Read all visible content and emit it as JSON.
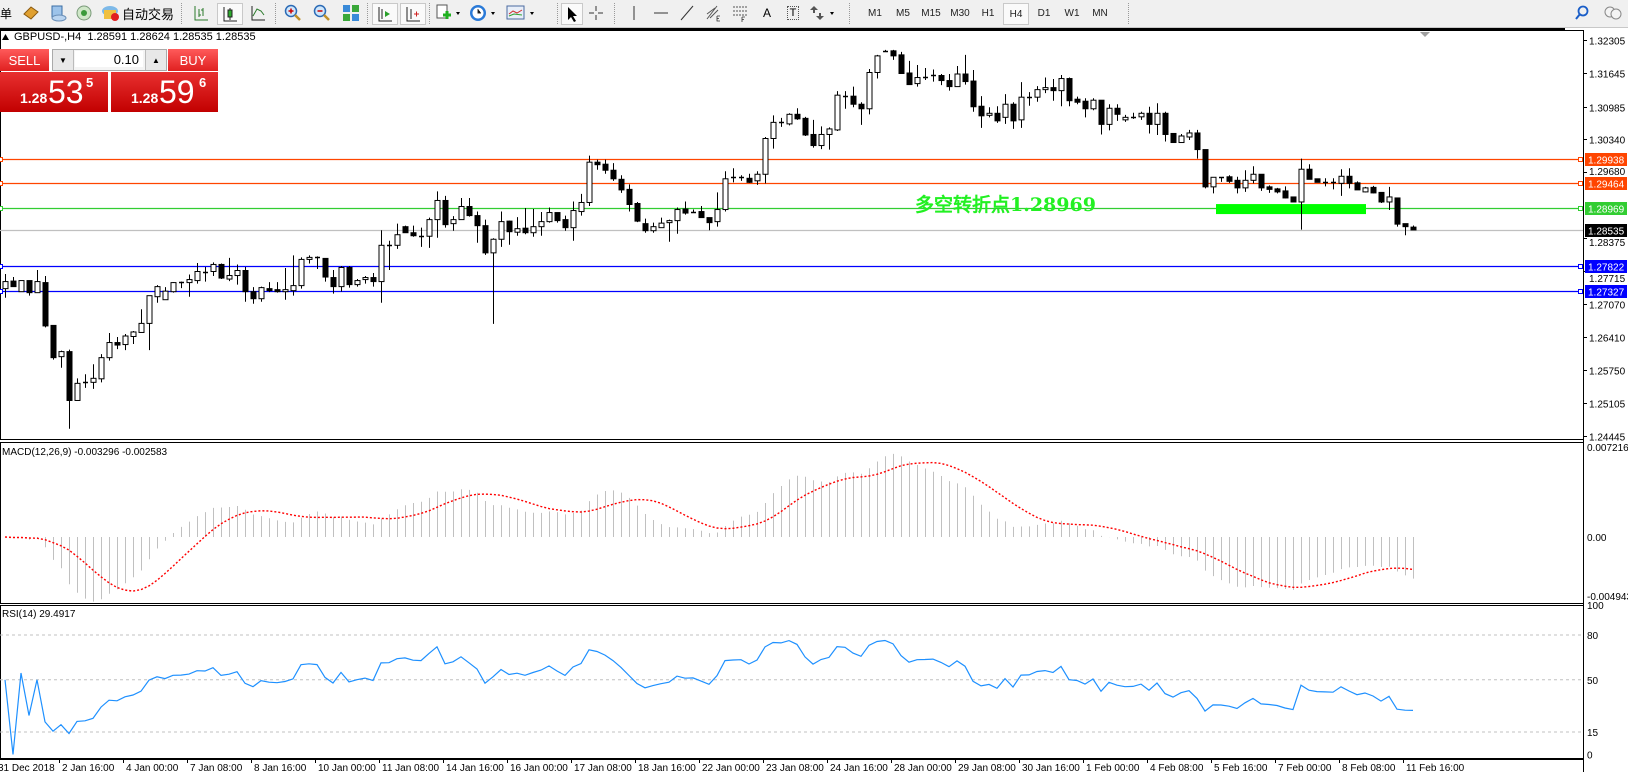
{
  "toolbar": {
    "menu_fragment": "单",
    "auto_trading_label": "自动交易",
    "icons": [
      "book-icon",
      "navigator-icon",
      "signals-icon",
      "auto-trading-icon",
      "bar-chart-icon",
      "candlestick-icon",
      "line-chart-icon",
      "zoom-in-icon",
      "zoom-out-icon",
      "tile-windows-icon",
      "auto-scroll-icon",
      "chart-shift-icon",
      "new-chart-icon",
      "periods-icon",
      "templates-icon",
      "cursor-icon",
      "crosshair-icon",
      "vertical-line-icon",
      "horizontal-line-icon",
      "trendline-icon",
      "fibonacci-icon",
      "equidistant-channel-icon",
      "text-icon",
      "text-label-icon",
      "arrows-icon",
      "search-icon",
      "community-icon"
    ],
    "text_tool": "A",
    "label_tool": "T",
    "timeframes": [
      "M1",
      "M5",
      "M15",
      "M30",
      "H1",
      "H4",
      "D1",
      "W1",
      "MN"
    ],
    "active_timeframe": "H4"
  },
  "chart": {
    "header": "GBPUSD-,H4  1.28591 1.28624 1.28535 1.28535",
    "annotation": "多空转折点1.28969",
    "annotation_color": "#22f022",
    "pivot_bar_color": "#00ff00"
  },
  "trade_panel": {
    "sell_label": "SELL",
    "buy_label": "BUY",
    "lot": "0.10",
    "sell": {
      "prefix": "1.28",
      "big": "53",
      "sup": "5"
    },
    "buy": {
      "prefix": "1.28",
      "big": "59",
      "sup": "6"
    }
  },
  "chart_data": {
    "type": "candlestick",
    "symbol": "GBPUSD-",
    "timeframe": "H4",
    "price_axis": {
      "max": 1.32305,
      "min": 1.24445,
      "ticks": [
        "1.32305",
        "1.31645",
        "1.30985",
        "1.30340",
        "1.29680",
        "1.28375",
        "1.27715",
        "1.27070",
        "1.26410",
        "1.25750",
        "1.25105",
        "1.24445"
      ]
    },
    "levels": [
      {
        "price": 1.29938,
        "label": "1.29938",
        "color": "#ff4500"
      },
      {
        "price": 1.29464,
        "label": "1.29464",
        "color": "#ff4500"
      },
      {
        "price": 1.28969,
        "label": "1.28969",
        "color": "#32cd32"
      },
      {
        "price": 1.28535,
        "label": "1.28535",
        "color": "#000000",
        "line_color": "#c0c0c0"
      },
      {
        "price": 1.27822,
        "label": "1.27822",
        "color": "#0000ff"
      },
      {
        "price": 1.27327,
        "label": "1.27327",
        "color": "#0000ff"
      }
    ],
    "time_labels": [
      "31 Dec 2018",
      "2 Jan 16:00",
      "4 Jan 00:00",
      "7 Jan 08:00",
      "8 Jan 16:00",
      "10 Jan 00:00",
      "11 Jan 08:00",
      "14 Jan 16:00",
      "16 Jan 00:00",
      "17 Jan 08:00",
      "18 Jan 16:00",
      "22 Jan 00:00",
      "23 Jan 08:00",
      "24 Jan 16:00",
      "28 Jan 00:00",
      "29 Jan 08:00",
      "30 Jan 16:00",
      "1 Feb 00:00",
      "4 Feb 08:00",
      "5 Feb 16:00",
      "7 Feb 00:00",
      "8 Feb 08:00",
      "11 Feb 16:00"
    ],
    "candles_format": [
      "open",
      "high",
      "low",
      "close"
    ],
    "candles": [
      [
        1.2737,
        1.2766,
        1.2719,
        1.2751
      ],
      [
        1.2752,
        1.276,
        1.2741,
        1.2741
      ],
      [
        1.2731,
        1.2753,
        1.2731,
        1.2753
      ],
      [
        1.2753,
        1.2753,
        1.2723,
        1.2729
      ],
      [
        1.2729,
        1.2774,
        1.2729,
        1.2751
      ],
      [
        1.2749,
        1.2762,
        1.266,
        1.2663
      ],
      [
        1.2664,
        1.2664,
        1.2596,
        1.26
      ],
      [
        1.2602,
        1.2614,
        1.258,
        1.2612
      ],
      [
        1.2612,
        1.2616,
        1.2459,
        1.2515
      ],
      [
        1.2515,
        1.2559,
        1.2515,
        1.2549
      ],
      [
        1.2549,
        1.2567,
        1.254,
        1.2551
      ],
      [
        1.2551,
        1.2587,
        1.2538,
        1.2559
      ],
      [
        1.2558,
        1.2607,
        1.2551,
        1.26
      ],
      [
        1.26,
        1.2649,
        1.2594,
        1.263
      ],
      [
        1.263,
        1.2641,
        1.2617,
        1.2625
      ],
      [
        1.2626,
        1.2647,
        1.2615,
        1.2643
      ],
      [
        1.2642,
        1.2653,
        1.2627,
        1.2651
      ],
      [
        1.265,
        1.2696,
        1.265,
        1.2668
      ],
      [
        1.2668,
        1.2723,
        1.2615,
        1.2723
      ],
      [
        1.2721,
        1.2744,
        1.2709,
        1.2741
      ],
      [
        1.2715,
        1.274,
        1.2715,
        1.2732
      ],
      [
        1.2731,
        1.275,
        1.2729,
        1.2749
      ],
      [
        1.2749,
        1.2751,
        1.2738,
        1.275
      ],
      [
        1.2749,
        1.2765,
        1.2721,
        1.2755
      ],
      [
        1.2753,
        1.2788,
        1.2747,
        1.2771
      ],
      [
        1.2771,
        1.278,
        1.2751,
        1.277
      ],
      [
        1.2771,
        1.2789,
        1.2762,
        1.2785
      ],
      [
        1.2785,
        1.2787,
        1.2756,
        1.2758
      ],
      [
        1.2756,
        1.2798,
        1.2752,
        1.2763
      ],
      [
        1.2763,
        1.2785,
        1.2745,
        1.2773
      ],
      [
        1.2773,
        1.278,
        1.2711,
        1.2731
      ],
      [
        1.2731,
        1.274,
        1.2707,
        1.2717
      ],
      [
        1.2717,
        1.2741,
        1.2711,
        1.2739
      ],
      [
        1.2737,
        1.275,
        1.273,
        1.2733
      ],
      [
        1.2735,
        1.275,
        1.2729,
        1.2731
      ],
      [
        1.2731,
        1.2778,
        1.2715,
        1.2735
      ],
      [
        1.2733,
        1.2803,
        1.2723,
        1.2743
      ],
      [
        1.2743,
        1.2799,
        1.2737,
        1.2795
      ],
      [
        1.2795,
        1.2803,
        1.2787,
        1.2799
      ],
      [
        1.2799,
        1.2801,
        1.2776,
        1.2797
      ],
      [
        1.2797,
        1.2797,
        1.2751,
        1.276
      ],
      [
        1.2759,
        1.2774,
        1.2727,
        1.2741
      ],
      [
        1.2741,
        1.2782,
        1.2731,
        1.2779
      ],
      [
        1.2779,
        1.2782,
        1.2739,
        1.2745
      ],
      [
        1.2745,
        1.2756,
        1.2741,
        1.2753
      ],
      [
        1.2755,
        1.2762,
        1.2747,
        1.2759
      ],
      [
        1.2759,
        1.2768,
        1.2741,
        1.2751
      ],
      [
        1.2751,
        1.2853,
        1.2709,
        1.2823
      ],
      [
        1.2823,
        1.2832,
        1.2774,
        1.2824
      ],
      [
        1.2823,
        1.2866,
        1.2816,
        1.2844
      ],
      [
        1.286,
        1.2862,
        1.2848,
        1.2848
      ],
      [
        1.2848,
        1.2862,
        1.284,
        1.2842
      ],
      [
        1.2842,
        1.2858,
        1.282,
        1.2841
      ],
      [
        1.2841,
        1.2878,
        1.2818,
        1.2874
      ],
      [
        1.2874,
        1.293,
        1.2838,
        1.2912
      ],
      [
        1.2912,
        1.2921,
        1.2858,
        1.2864
      ],
      [
        1.2866,
        1.2881,
        1.2852,
        1.2874
      ],
      [
        1.2874,
        1.2917,
        1.2874,
        1.29
      ],
      [
        1.29,
        1.2917,
        1.288,
        1.2882
      ],
      [
        1.2882,
        1.289,
        1.2828,
        1.2862
      ],
      [
        1.2862,
        1.2874,
        1.2804,
        1.2808
      ],
      [
        1.2808,
        1.2837,
        1.2667,
        1.2835
      ],
      [
        1.2835,
        1.289,
        1.282,
        1.287
      ],
      [
        1.2871,
        1.2872,
        1.2824,
        1.285
      ],
      [
        1.2849,
        1.2879,
        1.2842,
        1.2856
      ],
      [
        1.2857,
        1.2897,
        1.2845,
        1.2848
      ],
      [
        1.2848,
        1.2895,
        1.284,
        1.286
      ],
      [
        1.286,
        1.2889,
        1.2842,
        1.287
      ],
      [
        1.287,
        1.2898,
        1.2868,
        1.2888
      ],
      [
        1.2888,
        1.2888,
        1.2868,
        1.2872
      ],
      [
        1.2874,
        1.2882,
        1.2852,
        1.2858
      ],
      [
        1.2858,
        1.291,
        1.2832,
        1.2892
      ],
      [
        1.289,
        1.2925,
        1.2882,
        1.2908
      ],
      [
        1.2908,
        1.3001,
        1.2901,
        1.2988
      ],
      [
        1.2988,
        1.2993,
        1.2973,
        1.2983
      ],
      [
        1.2984,
        1.2993,
        1.2965,
        1.2972
      ],
      [
        1.2972,
        1.2986,
        1.2951,
        1.2955
      ],
      [
        1.2954,
        1.2962,
        1.2927,
        1.2933
      ],
      [
        1.2934,
        1.2944,
        1.289,
        1.2904
      ],
      [
        1.2906,
        1.2909,
        1.2869,
        1.2871
      ],
      [
        1.2866,
        1.2876,
        1.2848,
        1.2852
      ],
      [
        1.2852,
        1.2868,
        1.2848,
        1.286
      ],
      [
        1.2858,
        1.2878,
        1.2858,
        1.2867
      ],
      [
        1.2868,
        1.2874,
        1.283,
        1.2872
      ],
      [
        1.2872,
        1.2898,
        1.2846,
        1.2894
      ],
      [
        1.2895,
        1.291,
        1.2884,
        1.2887
      ],
      [
        1.289,
        1.2894,
        1.2888,
        1.2888
      ],
      [
        1.289,
        1.2901,
        1.2878,
        1.2878
      ],
      [
        1.2878,
        1.2878,
        1.2853,
        1.2868
      ],
      [
        1.287,
        1.2928,
        1.286,
        1.2894
      ],
      [
        1.2894,
        1.297,
        1.289,
        1.2955
      ],
      [
        1.2956,
        1.2976,
        1.2948,
        1.2958
      ],
      [
        1.2958,
        1.2962,
        1.2951,
        1.2959
      ],
      [
        1.2956,
        1.2965,
        1.2947,
        1.2948
      ],
      [
        1.2951,
        1.297,
        1.2943,
        1.2964
      ],
      [
        1.2964,
        1.3038,
        1.2946,
        1.3035
      ],
      [
        1.3035,
        1.3081,
        1.3015,
        1.3067
      ],
      [
        1.3067,
        1.3076,
        1.3058,
        1.3066
      ],
      [
        1.3064,
        1.3085,
        1.3061,
        1.3083
      ],
      [
        1.3083,
        1.3095,
        1.3072,
        1.3074
      ],
      [
        1.3075,
        1.3078,
        1.304,
        1.3042
      ],
      [
        1.3043,
        1.3072,
        1.3017,
        1.3021
      ],
      [
        1.3021,
        1.3059,
        1.3014,
        1.3043
      ],
      [
        1.3043,
        1.3057,
        1.3013,
        1.3054
      ],
      [
        1.3052,
        1.3129,
        1.305,
        1.3121
      ],
      [
        1.312,
        1.3129,
        1.3094,
        1.3119
      ],
      [
        1.3119,
        1.3138,
        1.3097,
        1.3103
      ],
      [
        1.3103,
        1.3107,
        1.3062,
        1.3094
      ],
      [
        1.3094,
        1.3173,
        1.3083,
        1.3166
      ],
      [
        1.3166,
        1.3201,
        1.3154,
        1.3199
      ],
      [
        1.3209,
        1.3211,
        1.3207,
        1.3208
      ],
      [
        1.3209,
        1.3211,
        1.3191,
        1.3199
      ],
      [
        1.3201,
        1.3207,
        1.3164,
        1.3164
      ],
      [
        1.3165,
        1.3189,
        1.3142,
        1.3142
      ],
      [
        1.3144,
        1.3181,
        1.3138,
        1.3156
      ],
      [
        1.3158,
        1.3175,
        1.3151,
        1.3157
      ],
      [
        1.3161,
        1.3172,
        1.3148,
        1.3159
      ],
      [
        1.316,
        1.3163,
        1.3141,
        1.315
      ],
      [
        1.315,
        1.3163,
        1.313,
        1.3138
      ],
      [
        1.3138,
        1.3179,
        1.3138,
        1.3163
      ],
      [
        1.3163,
        1.3201,
        1.3142,
        1.3148
      ],
      [
        1.3149,
        1.3171,
        1.3088,
        1.3098
      ],
      [
        1.3099,
        1.3119,
        1.3056,
        1.308
      ],
      [
        1.3081,
        1.3097,
        1.3077,
        1.3085
      ],
      [
        1.3085,
        1.3099,
        1.3066,
        1.307
      ],
      [
        1.3077,
        1.3123,
        1.3064,
        1.3103
      ],
      [
        1.3103,
        1.3107,
        1.3054,
        1.307
      ],
      [
        1.3072,
        1.3147,
        1.3056,
        1.3117
      ],
      [
        1.3117,
        1.3127,
        1.31,
        1.3118
      ],
      [
        1.3117,
        1.3139,
        1.3108,
        1.3132
      ],
      [
        1.3132,
        1.3156,
        1.3125,
        1.3136
      ],
      [
        1.3136,
        1.3153,
        1.311,
        1.313
      ],
      [
        1.313,
        1.3161,
        1.3099,
        1.3154
      ],
      [
        1.3154,
        1.3156,
        1.3099,
        1.311
      ],
      [
        1.3113,
        1.3118,
        1.3103,
        1.3107
      ],
      [
        1.3109,
        1.3115,
        1.3077,
        1.3094
      ],
      [
        1.3094,
        1.3115,
        1.3091,
        1.3111
      ],
      [
        1.3111,
        1.3111,
        1.3043,
        1.3063
      ],
      [
        1.3063,
        1.3103,
        1.3051,
        1.3095
      ],
      [
        1.3095,
        1.3103,
        1.307,
        1.3083
      ],
      [
        1.3072,
        1.3082,
        1.3068,
        1.3077
      ],
      [
        1.3077,
        1.3086,
        1.3074,
        1.3078
      ],
      [
        1.3078,
        1.3088,
        1.3072,
        1.3085
      ],
      [
        1.3085,
        1.3098,
        1.3045,
        1.3063
      ],
      [
        1.3063,
        1.3105,
        1.3042,
        1.3085
      ],
      [
        1.3085,
        1.3088,
        1.3029,
        1.3043
      ],
      [
        1.3045,
        1.3045,
        1.3027,
        1.3027
      ],
      [
        1.3027,
        1.3044,
        1.3027,
        1.304
      ],
      [
        1.3038,
        1.3052,
        1.3032,
        1.3046
      ],
      [
        1.3046,
        1.3052,
        1.2995,
        1.3013
      ],
      [
        1.3013,
        1.3013,
        1.2936,
        1.2939
      ],
      [
        1.2939,
        1.2958,
        1.2926,
        1.2958
      ],
      [
        1.2958,
        1.2958,
        1.2949,
        1.2957
      ],
      [
        1.2959,
        1.2962,
        1.2947,
        1.295
      ],
      [
        1.2952,
        1.2959,
        1.2926,
        1.2937
      ],
      [
        1.2937,
        1.2972,
        1.2929,
        1.2952
      ],
      [
        1.2952,
        1.298,
        1.2946,
        1.2964
      ],
      [
        1.2964,
        1.2964,
        1.2931,
        1.2937
      ],
      [
        1.2939,
        1.2942,
        1.2927,
        1.2934
      ],
      [
        1.2935,
        1.2937,
        1.2926,
        1.2929
      ],
      [
        1.2931,
        1.294,
        1.2916,
        1.2917
      ],
      [
        1.2919,
        1.2919,
        1.2909,
        1.2909
      ],
      [
        1.2909,
        1.2995,
        1.2854,
        1.2974
      ],
      [
        1.2974,
        1.2984,
        1.2954,
        1.2954
      ],
      [
        1.2955,
        1.2955,
        1.2948,
        1.2948
      ],
      [
        1.2948,
        1.2956,
        1.294,
        1.2947
      ],
      [
        1.2948,
        1.2956,
        1.2934,
        1.2946
      ],
      [
        1.2946,
        1.2974,
        1.2921,
        1.296
      ],
      [
        1.296,
        1.2976,
        1.2936,
        1.2946
      ],
      [
        1.2947,
        1.295,
        1.2933,
        1.2933
      ],
      [
        1.2929,
        1.2939,
        1.2928,
        1.2937
      ],
      [
        1.2938,
        1.2941,
        1.2926,
        1.2927
      ],
      [
        1.2928,
        1.2928,
        1.2907,
        1.2909
      ],
      [
        1.2909,
        1.2939,
        1.2893,
        1.2919
      ],
      [
        1.2917,
        1.2917,
        1.286,
        1.2865
      ],
      [
        1.2866,
        1.2866,
        1.2843,
        1.286
      ],
      [
        1.28591,
        1.28624,
        1.28535,
        1.28535
      ]
    ],
    "macd": {
      "title": "MACD(12,26,9) -0.003296 -0.002583",
      "params": [
        12,
        26,
        9
      ],
      "main_last": -0.003296,
      "signal_last": -0.002583,
      "axis": {
        "max": 0.007216,
        "min": -0.004943,
        "labels": [
          "0.007216",
          "0.00",
          "-0.004943"
        ]
      },
      "histogram_color": "#c0c0c0",
      "signal_color": "#ff0000"
    },
    "rsi": {
      "title": "RSI(14) 29.4917",
      "period": 14,
      "last": 29.4917,
      "axis_labels": [
        "100",
        "80",
        "50",
        "15",
        "0"
      ],
      "levels": [
        80,
        50,
        15
      ],
      "color": "#1e90ff"
    },
    "pivot_zone": {
      "price": 1.28969,
      "from_label": "5 Feb 16:00",
      "to_label": "8 Feb 08:00"
    }
  }
}
